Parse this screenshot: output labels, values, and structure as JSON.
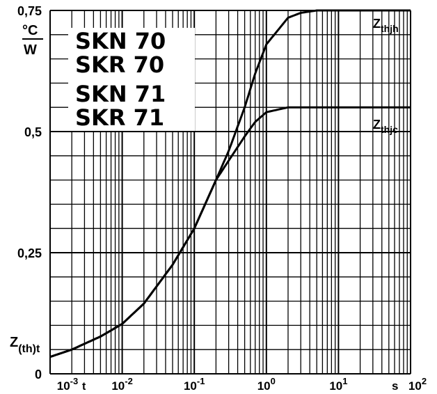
{
  "chart_data": {
    "type": "line",
    "x_scale": "log",
    "xlim": [
      0.001,
      100
    ],
    "ylim": [
      0,
      0.75
    ],
    "grid": true,
    "y_ticks": [
      "0",
      "0,25",
      "0,5",
      "0,75"
    ],
    "x_ticks": [
      {
        "base": "10",
        "exp": "-3"
      },
      {
        "base": "10",
        "exp": "-2"
      },
      {
        "base": "10",
        "exp": "-1"
      },
      {
        "base": "10",
        "exp": "0"
      },
      {
        "base": "10",
        "exp": "1"
      },
      {
        "base": "10",
        "exp": "2"
      }
    ],
    "y_unit": {
      "num": "°C",
      "den": "W"
    },
    "x_axis_marker": "t",
    "x_unit": "s",
    "y_axis_symbol": {
      "main": "Z",
      "sub": "(th)t"
    },
    "device_labels": [
      "SKN 70",
      "SKR 70",
      "SKN 71",
      "SKR 71"
    ],
    "series": [
      {
        "label_main": "Z",
        "label_sub": "thjh",
        "x": [
          0.001,
          0.002,
          0.005,
          0.01,
          0.02,
          0.05,
          0.1,
          0.2,
          0.3,
          0.5,
          0.7,
          1,
          2,
          3,
          5,
          100
        ],
        "y": [
          0.035,
          0.05,
          0.077,
          0.103,
          0.145,
          0.225,
          0.3,
          0.4,
          0.46,
          0.55,
          0.62,
          0.68,
          0.735,
          0.745,
          0.75,
          0.75
        ]
      },
      {
        "label_main": "Z",
        "label_sub": "thjc",
        "x": [
          0.001,
          0.002,
          0.005,
          0.01,
          0.02,
          0.05,
          0.1,
          0.2,
          0.3,
          0.5,
          0.7,
          1,
          2,
          100
        ],
        "y": [
          0.035,
          0.05,
          0.077,
          0.103,
          0.145,
          0.225,
          0.3,
          0.4,
          0.44,
          0.49,
          0.52,
          0.54,
          0.55,
          0.55
        ]
      }
    ]
  }
}
